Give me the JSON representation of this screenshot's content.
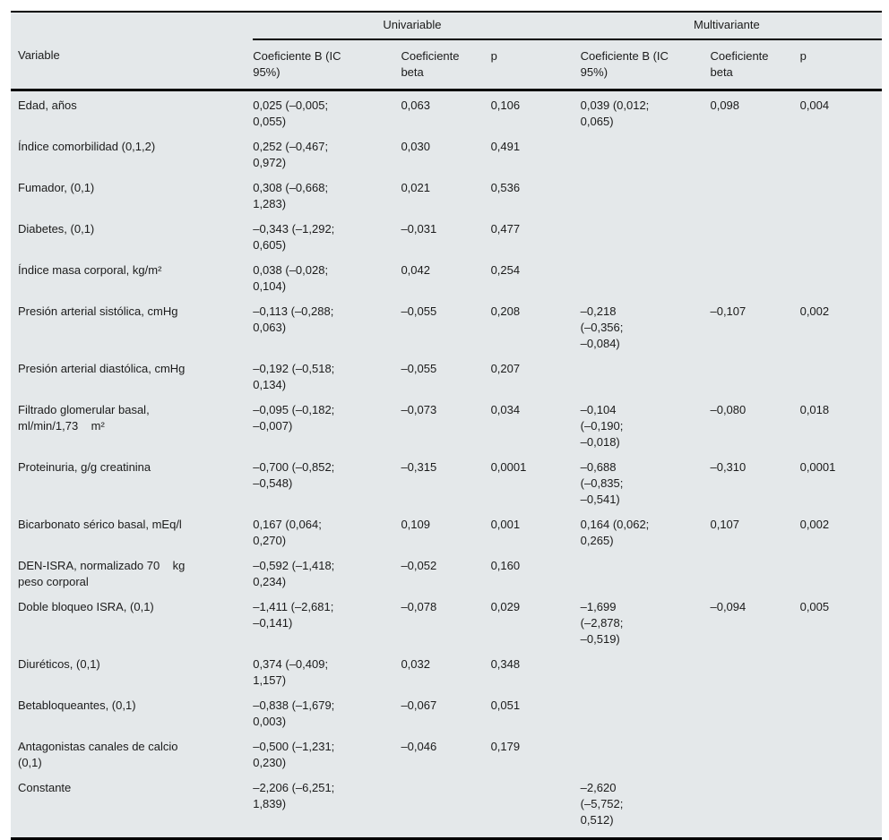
{
  "colors": {
    "table_background": "#e4e8ea",
    "rule": "#000000",
    "text": "#1b1b1b"
  },
  "table": {
    "group_headers": [
      {
        "label": "Univariable"
      },
      {
        "label": "Multivariante"
      }
    ],
    "columns": [
      "Variable",
      "Coeficiente B (IC\n95%)",
      "Coeficiente\nbeta",
      "p",
      "Coeficiente B (IC\n95%)",
      "Coeficiente\nbeta",
      "p"
    ],
    "rows": [
      {
        "variable": "Edad, años",
        "uni_b": "0,025 (–0,005;\n0,055)",
        "uni_beta": "0,063",
        "uni_p": "0,106",
        "multi_b": "0,039 (0,012;\n0,065)",
        "multi_beta": "0,098",
        "multi_p": "0,004"
      },
      {
        "variable": "Índice comorbilidad (0,1,2)",
        "uni_b": "0,252 (–0,467;\n0,972)",
        "uni_beta": "0,030",
        "uni_p": "0,491",
        "multi_b": "",
        "multi_beta": "",
        "multi_p": ""
      },
      {
        "variable": "Fumador, (0,1)",
        "uni_b": "0,308 (–0,668;\n1,283)",
        "uni_beta": "0,021",
        "uni_p": "0,536",
        "multi_b": "",
        "multi_beta": "",
        "multi_p": ""
      },
      {
        "variable": "Diabetes, (0,1)",
        "uni_b": "–0,343 (–1,292;\n0,605)",
        "uni_beta": "–0,031",
        "uni_p": "0,477",
        "multi_b": "",
        "multi_beta": "",
        "multi_p": ""
      },
      {
        "variable": "Índice masa corporal, kg/m²",
        "uni_b": "0,038 (–0,028;\n0,104)",
        "uni_beta": "0,042",
        "uni_p": "0,254",
        "multi_b": "",
        "multi_beta": "",
        "multi_p": ""
      },
      {
        "variable": "Presión arterial sistólica, cmHg",
        "uni_b": "–0,113 (–0,288;\n0,063)",
        "uni_beta": "–0,055",
        "uni_p": "0,208",
        "multi_b": "–0,218\n(–0,356;\n–0,084)",
        "multi_beta": "–0,107",
        "multi_p": "0,002"
      },
      {
        "variable": "Presión arterial diastólica, cmHg",
        "uni_b": "–0,192 (–0,518;\n0,134)",
        "uni_beta": "–0,055",
        "uni_p": "0,207",
        "multi_b": "",
        "multi_beta": "",
        "multi_p": ""
      },
      {
        "variable": "Filtrado glomerular basal,\nml/min/1,73    m²",
        "uni_b": "–0,095 (–0,182;\n–0,007)",
        "uni_beta": "–0,073",
        "uni_p": "0,034",
        "multi_b": "–0,104\n(–0,190;\n–0,018)",
        "multi_beta": "–0,080",
        "multi_p": "0,018"
      },
      {
        "variable": "Proteinuria, g/g creatinina",
        "uni_b": "–0,700 (–0,852;\n–0,548)",
        "uni_beta": "–0,315",
        "uni_p": "0,0001",
        "multi_b": "–0,688\n(–0,835;\n–0,541)",
        "multi_beta": "–0,310",
        "multi_p": "0,0001"
      },
      {
        "variable": "Bicarbonato sérico basal, mEq/l",
        "uni_b": "0,167 (0,064;\n0,270)",
        "uni_beta": "0,109",
        "uni_p": "0,001",
        "multi_b": "0,164 (0,062;\n0,265)",
        "multi_beta": "0,107",
        "multi_p": "0,002"
      },
      {
        "variable": "DEN-ISRA, normalizado 70    kg\npeso corporal",
        "uni_b": "–0,592 (–1,418;\n0,234)",
        "uni_beta": "–0,052",
        "uni_p": "0,160",
        "multi_b": "",
        "multi_beta": "",
        "multi_p": ""
      },
      {
        "variable": "Doble bloqueo ISRA, (0,1)",
        "uni_b": "–1,411 (–2,681;\n–0,141)",
        "uni_beta": "–0,078",
        "uni_p": "0,029",
        "multi_b": "–1,699\n(–2,878;\n–0,519)",
        "multi_beta": "–0,094",
        "multi_p": "0,005"
      },
      {
        "variable": "Diuréticos, (0,1)",
        "uni_b": "0,374 (–0,409;\n1,157)",
        "uni_beta": "0,032",
        "uni_p": "0,348",
        "multi_b": "",
        "multi_beta": "",
        "multi_p": ""
      },
      {
        "variable": "Betabloqueantes, (0,1)",
        "uni_b": "–0,838 (–1,679;\n0,003)",
        "uni_beta": "–0,067",
        "uni_p": "0,051",
        "multi_b": "",
        "multi_beta": "",
        "multi_p": ""
      },
      {
        "variable": "Antagonistas canales de calcio\n(0,1)",
        "uni_b": "–0,500 (–1,231;\n0,230)",
        "uni_beta": "–0,046",
        "uni_p": "0,179",
        "multi_b": "",
        "multi_beta": "",
        "multi_p": ""
      },
      {
        "variable": "Constante",
        "uni_b": "–2,206 (–6,251;\n1,839)",
        "uni_beta": "",
        "uni_p": "",
        "multi_b": "–2,620\n(–5,752;\n0,512)",
        "multi_beta": "",
        "multi_p": ""
      }
    ]
  }
}
